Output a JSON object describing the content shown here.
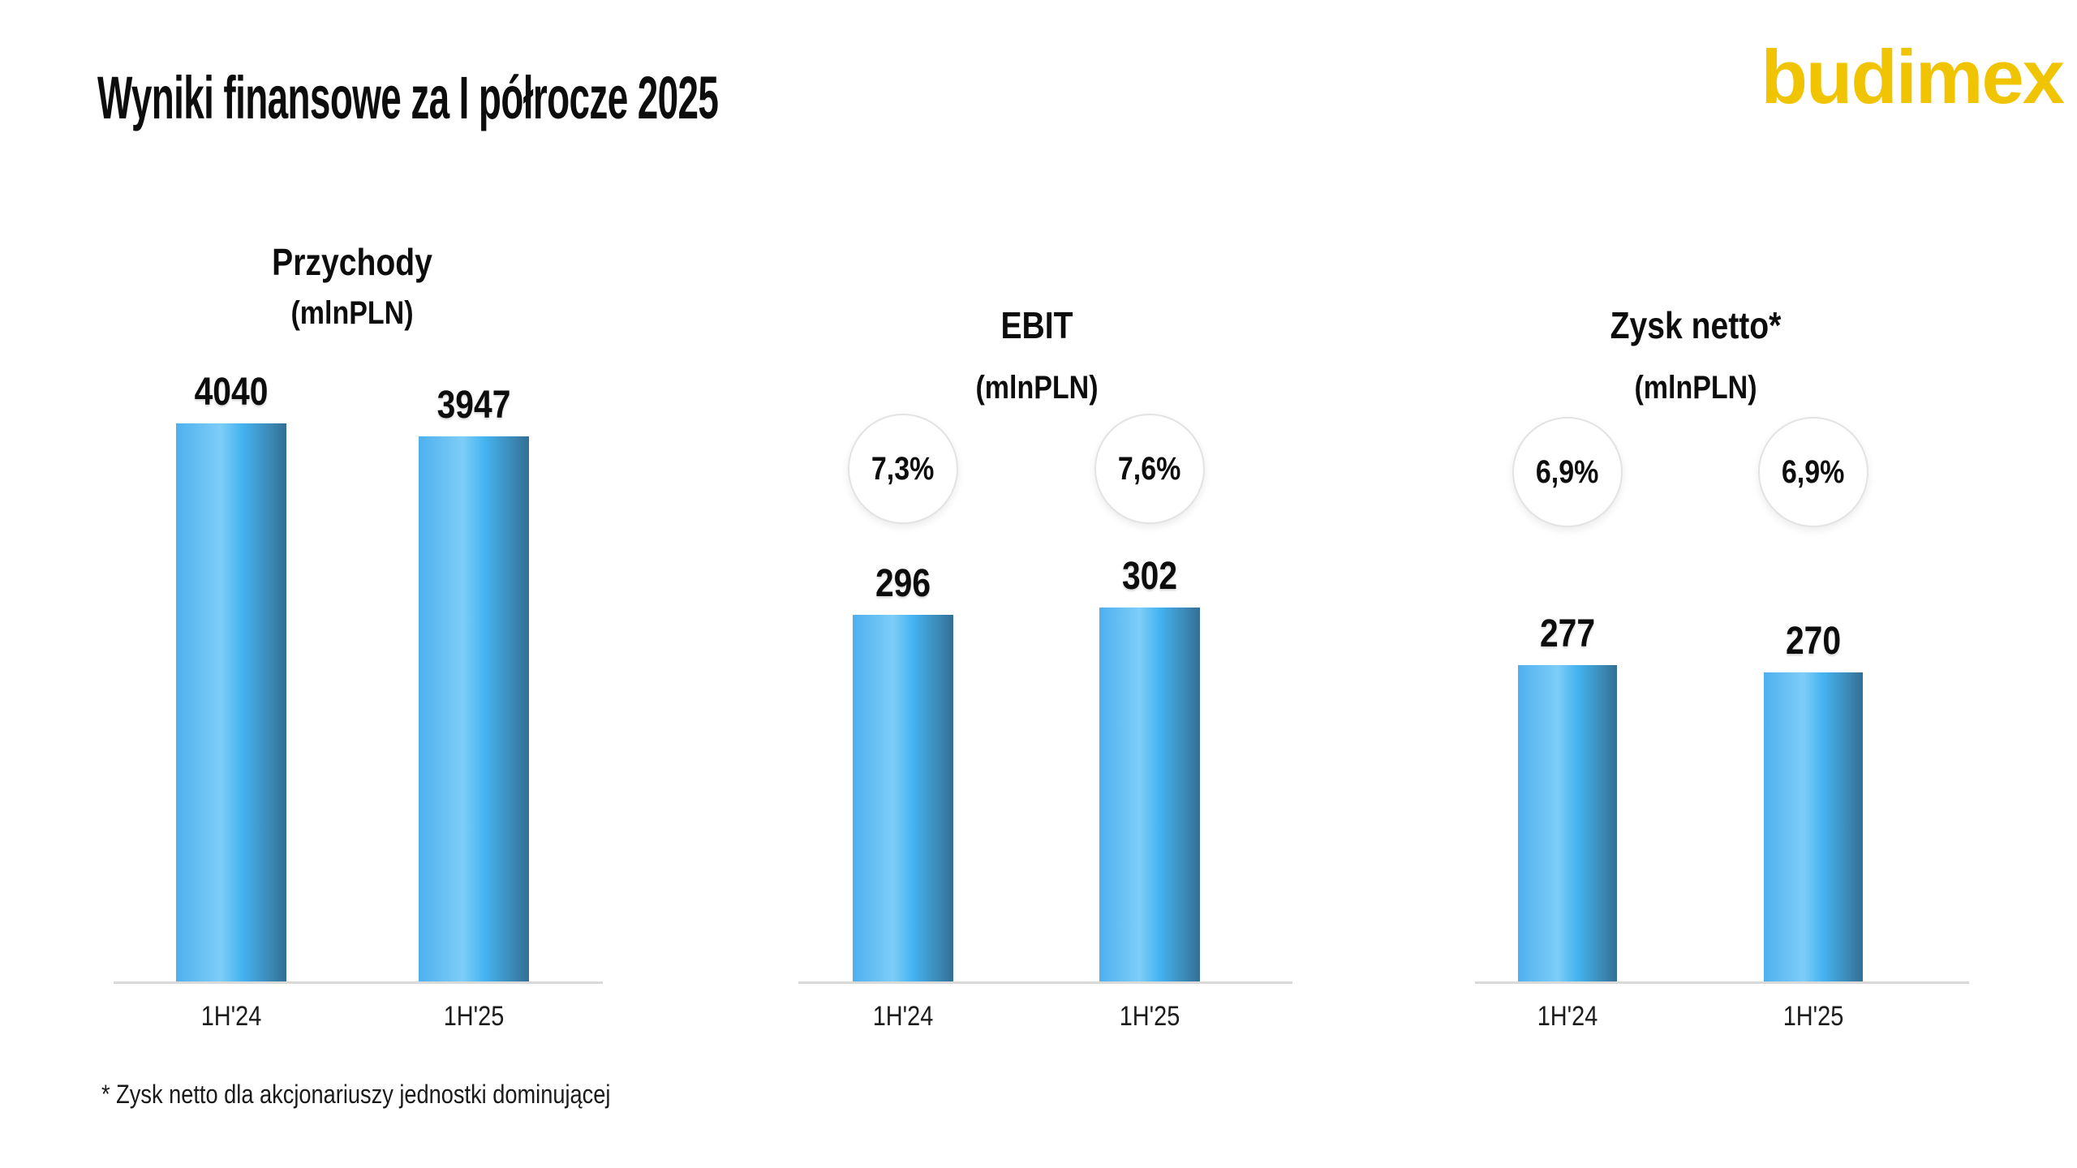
{
  "header": {
    "title": "Wyniki finansowe za I półrocze 2025",
    "logo_text": "budimex"
  },
  "footnote": {
    "text": "* Zysk netto dla akcjonariuszy jednostki dominującej"
  },
  "colors": {
    "background": "#FFFFFF",
    "logo": "#F0C400",
    "text": "#111111",
    "axis_line": "#D9D9D9",
    "circle_border": "#E3E3E3",
    "bar_gradient": [
      "#4FB0EE",
      "#7DCDF8",
      "#44B3F0",
      "#3C89B6",
      "#326F96"
    ]
  },
  "chart_data": [
    {
      "type": "bar",
      "title": "Przychody",
      "subtitle": "(mlnPLN)",
      "categories": [
        "1H'24",
        "1H'25"
      ],
      "values": [
        4040,
        3947
      ],
      "value_labels": [
        "4040",
        "3947"
      ],
      "margin_badges": [],
      "ylim": [
        0,
        4270
      ],
      "grid": false,
      "legend": "none"
    },
    {
      "type": "bar",
      "title": "EBIT",
      "subtitle": "(mlnPLN)",
      "categories": [
        "1H'24",
        "1H'25"
      ],
      "values": [
        296,
        302
      ],
      "value_labels": [
        "296",
        "302"
      ],
      "margin_badges": [
        "7,3%",
        "7,6%"
      ],
      "ylim": [
        0,
        340
      ],
      "grid": false,
      "legend": "none"
    },
    {
      "type": "bar",
      "title": "Zysk netto*",
      "subtitle": "(mlnPLN)",
      "categories": [
        "1H'24",
        "1H'25"
      ],
      "values": [
        277,
        270
      ],
      "value_labels": [
        "277",
        "270"
      ],
      "margin_badges": [
        "6,9%",
        "6,9%"
      ],
      "ylim": [
        0,
        364
      ],
      "grid": false,
      "legend": "none"
    }
  ]
}
